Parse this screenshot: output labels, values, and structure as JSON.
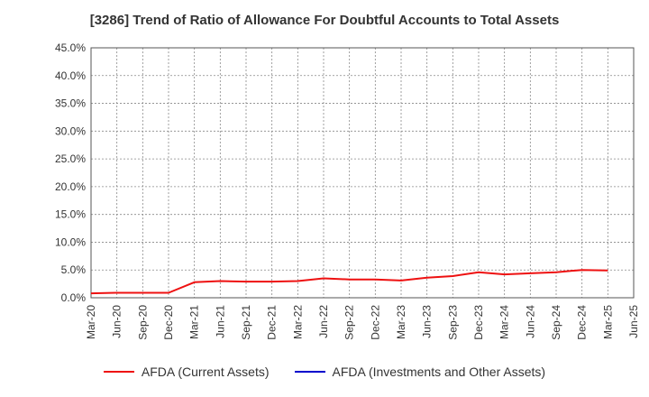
{
  "chart_data": {
    "type": "line",
    "title": "[3286]  Trend of Ratio of Allowance For Doubtful Accounts to Total Assets",
    "xlabel": "",
    "ylabel": "",
    "ylim": [
      0,
      45
    ],
    "y_ticks": [
      "0.0%",
      "5.0%",
      "10.0%",
      "15.0%",
      "20.0%",
      "25.0%",
      "30.0%",
      "35.0%",
      "40.0%",
      "45.0%"
    ],
    "categories": [
      "Mar-20",
      "Jun-20",
      "Sep-20",
      "Dec-20",
      "Mar-21",
      "Jun-21",
      "Sep-21",
      "Dec-21",
      "Mar-22",
      "Jun-22",
      "Sep-22",
      "Dec-22",
      "Mar-23",
      "Jun-23",
      "Sep-23",
      "Dec-23",
      "Mar-24",
      "Jun-24",
      "Sep-24",
      "Dec-24",
      "Mar-25",
      "Jun-25"
    ],
    "grid": true,
    "legend_position": "bottom",
    "series": [
      {
        "name": "AFDA (Current Assets)",
        "color": "#ee1111",
        "values": [
          0.8,
          0.9,
          0.9,
          0.9,
          2.8,
          3.0,
          2.9,
          2.9,
          3.0,
          3.5,
          3.3,
          3.3,
          3.1,
          3.6,
          3.9,
          4.6,
          4.2,
          4.4,
          4.6,
          5.0,
          4.9,
          null
        ]
      },
      {
        "name": "AFDA (Investments and Other Assets)",
        "color": "#0000cc",
        "values": [
          null,
          null,
          null,
          null,
          null,
          null,
          null,
          null,
          null,
          null,
          null,
          null,
          null,
          null,
          null,
          null,
          null,
          null,
          null,
          null,
          null,
          null
        ]
      }
    ]
  }
}
